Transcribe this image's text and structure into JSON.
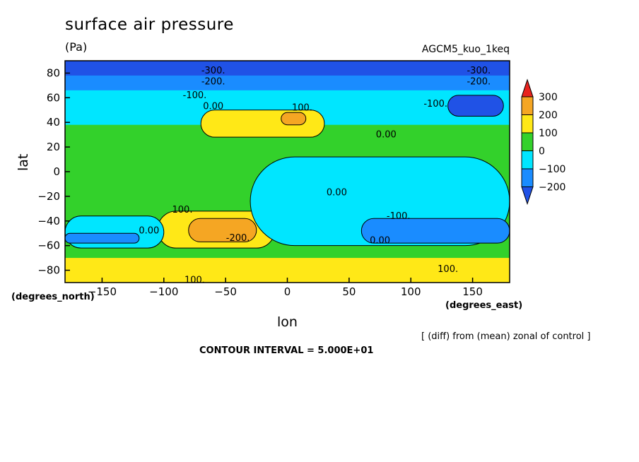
{
  "chart_data": {
    "type": "heatmap",
    "title": "surface air pressure",
    "units": "(Pa)",
    "run_label": "AGCM5_kuo_1keq",
    "xlabel": "lon",
    "ylabel": "lat",
    "x_unit_label": "(degrees_east)",
    "y_unit_label": "(degrees_north)",
    "xlim": [
      -180,
      180
    ],
    "ylim": [
      -90,
      90
    ],
    "x_ticks": [
      -150,
      -100,
      -50,
      0,
      50,
      100,
      150
    ],
    "y_ticks": [
      80,
      60,
      40,
      20,
      0,
      -20,
      -40,
      -60,
      -80
    ],
    "note": "[ (diff) from (mean) zonal of control ]",
    "contour_interval_text": "CONTOUR INTERVAL = 5.000E+01",
    "colorbar": {
      "labels": [
        "300",
        "200",
        "100",
        "0",
        "−100",
        "−200"
      ],
      "levels": [
        {
          "min": 300,
          "max": null,
          "color": "#e8231e"
        },
        {
          "min": 200,
          "max": 300,
          "color": "#f5a623"
        },
        {
          "min": 100,
          "max": 200,
          "color": "#ffe817"
        },
        {
          "min": 0,
          "max": 100,
          "color": "#33d12b"
        },
        {
          "min": -100,
          "max": 0,
          "color": "#00e6ff"
        },
        {
          "min": -200,
          "max": -100,
          "color": "#1a8cff"
        },
        {
          "min": null,
          "max": -200,
          "color": "#2052e6"
        }
      ]
    },
    "regions": [
      {
        "level": "0 to 100",
        "lon": [
          -180,
          180
        ],
        "lat": [
          -90,
          90
        ],
        "color": "#33d12b"
      },
      {
        "level": "-100 to 0",
        "lon": [
          -180,
          180
        ],
        "lat": [
          38,
          90
        ],
        "color": "#00e6ff"
      },
      {
        "level": "-200 to -100",
        "lon": [
          -180,
          180
        ],
        "lat": [
          66,
          90
        ],
        "color": "#1a8cff"
      },
      {
        "level": "< -200",
        "lon": [
          -180,
          180
        ],
        "lat": [
          78,
          90
        ],
        "color": "#2052e6"
      },
      {
        "level": "100 to 200",
        "lon": [
          -70,
          30
        ],
        "lat": [
          28,
          50
        ],
        "color": "#ffe817"
      },
      {
        "level": "200 to 300",
        "lon": [
          -5,
          15
        ],
        "lat": [
          38,
          48
        ],
        "color": "#f5a623"
      },
      {
        "level": "100 to 200",
        "lon": [
          -105,
          -10
        ],
        "lat": [
          -62,
          -32
        ],
        "color": "#ffe817"
      },
      {
        "level": "200 to 300",
        "lon": [
          -80,
          -25
        ],
        "lat": [
          -57,
          -38
        ],
        "color": "#f5a623"
      },
      {
        "level": "100 to 200",
        "lon": [
          -180,
          180
        ],
        "lat": [
          -90,
          -70
        ],
        "color": "#ffe817"
      },
      {
        "level": "-100 to 0",
        "lon": [
          -30,
          180
        ],
        "lat": [
          -60,
          12
        ],
        "color": "#00e6ff"
      },
      {
        "level": "-100 to 0",
        "lon": [
          -180,
          -100
        ],
        "lat": [
          -62,
          -36
        ],
        "color": "#00e6ff"
      },
      {
        "level": "-200 to -100",
        "lon": [
          60,
          180
        ],
        "lat": [
          -58,
          -38
        ],
        "color": "#1a8cff"
      },
      {
        "level": "-200 to -100",
        "lon": [
          -180,
          -120
        ],
        "lat": [
          -58,
          -50
        ],
        "color": "#1a8cff"
      },
      {
        "level": "< -200",
        "lon": [
          130,
          175
        ],
        "lat": [
          45,
          62
        ],
        "color": "#2052e6"
      }
    ],
    "contour_labels": [
      {
        "text": "-300.",
        "lon": -60,
        "lat": 82
      },
      {
        "text": "-300.",
        "lon": 155,
        "lat": 82
      },
      {
        "text": "-200.",
        "lon": -60,
        "lat": 73
      },
      {
        "text": "-200.",
        "lon": 155,
        "lat": 73
      },
      {
        "text": "-100.",
        "lon": -75,
        "lat": 62
      },
      {
        "text": "-100.",
        "lon": 120,
        "lat": 55
      },
      {
        "text": "0.00",
        "lon": -60,
        "lat": 53
      },
      {
        "text": "0.00",
        "lon": 80,
        "lat": 30
      },
      {
        "text": "100.",
        "lon": 12,
        "lat": 52
      },
      {
        "text": "0.00",
        "lon": 40,
        "lat": -17
      },
      {
        "text": "100.",
        "lon": -85,
        "lat": -31
      },
      {
        "text": "0.00",
        "lon": -112,
        "lat": -48
      },
      {
        "text": "-200.",
        "lon": -40,
        "lat": -54
      },
      {
        "text": "-100.",
        "lon": 90,
        "lat": -36
      },
      {
        "text": "0.00",
        "lon": 75,
        "lat": -56
      },
      {
        "text": "100.",
        "lon": 130,
        "lat": -79
      },
      {
        "text": "100.",
        "lon": -75,
        "lat": -88
      }
    ]
  }
}
